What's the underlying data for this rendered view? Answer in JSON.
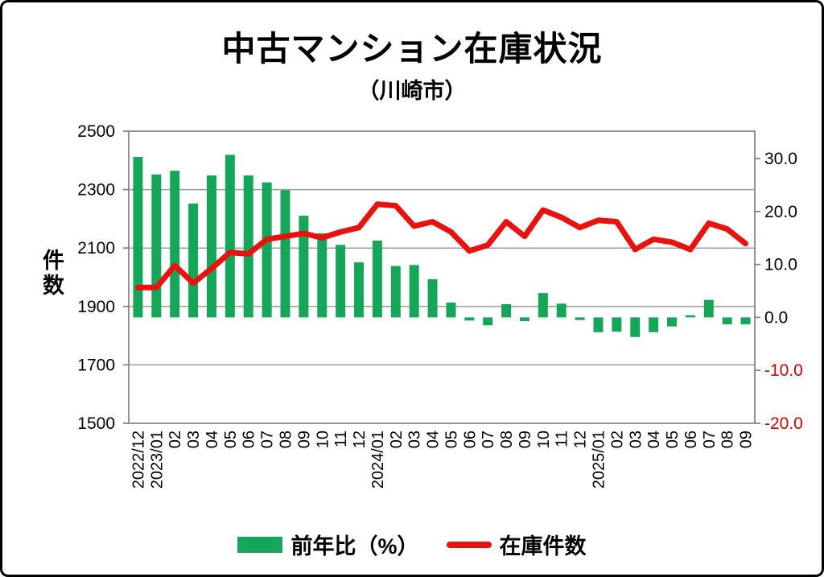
{
  "title": "中古マンション在庫状況",
  "subtitle": "（川崎市）",
  "left_axis_title": "件数",
  "legend": {
    "bar_label": "前年比（%）",
    "line_label": "在庫件数"
  },
  "colors": {
    "bar": "#16a65a",
    "line": "#e8120f",
    "negative_tick_label": "#d40000",
    "tick_label": "#000000",
    "grid": "#9b9b9b",
    "axis_border": "#808080"
  },
  "chart_data": {
    "type": "combo_bar_line",
    "title": "中古マンション在庫状況（川崎市）",
    "grid": "horizontal gridlines from primary (left) axis",
    "legend_position": "bottom",
    "categories": [
      "2022/12",
      "2023/01",
      "02",
      "03",
      "04",
      "05",
      "06",
      "07",
      "08",
      "09",
      "10",
      "11",
      "12",
      "2024/01",
      "02",
      "03",
      "04",
      "05",
      "06",
      "07",
      "08",
      "09",
      "10",
      "11",
      "12",
      "2025/01",
      "02",
      "03",
      "04",
      "05",
      "06",
      "07",
      "08",
      "09"
    ],
    "series": [
      {
        "name": "前年比（%）",
        "type": "bar",
        "axis": "right",
        "unit": "%",
        "values": [
          30.3,
          27.0,
          27.7,
          21.5,
          26.8,
          30.7,
          26.8,
          25.5,
          24.0,
          19.2,
          15.9,
          13.7,
          10.4,
          14.5,
          9.7,
          9.9,
          7.2,
          2.8,
          -0.6,
          -1.5,
          2.5,
          -0.7,
          4.6,
          2.6,
          -0.5,
          -2.8,
          -2.7,
          -3.7,
          -2.8,
          -1.7,
          0.4,
          3.3,
          -1.3,
          -1.3
        ]
      },
      {
        "name": "在庫件数",
        "type": "line",
        "axis": "left",
        "unit": "件",
        "values": [
          1965,
          1965,
          2040,
          1980,
          2030,
          2085,
          2080,
          2130,
          2140,
          2150,
          2135,
          2155,
          2170,
          2250,
          2245,
          2175,
          2190,
          2155,
          2090,
          2110,
          2190,
          2140,
          2230,
          2205,
          2170,
          2195,
          2190,
          2095,
          2130,
          2120,
          2095,
          2185,
          2165,
          2115
        ]
      }
    ],
    "left_axis": {
      "label": "件数",
      "min": 1500,
      "max": 2500,
      "tick_step": 200,
      "ticks": [
        "2500",
        "2300",
        "2100",
        "1900",
        "1700",
        "1500"
      ]
    },
    "right_axis": {
      "min": -20,
      "max": 35,
      "tick_step": 10,
      "ticks": [
        "30.0",
        "20.0",
        "10.0",
        "0.0",
        "-10.0",
        "-20.0"
      ]
    }
  }
}
